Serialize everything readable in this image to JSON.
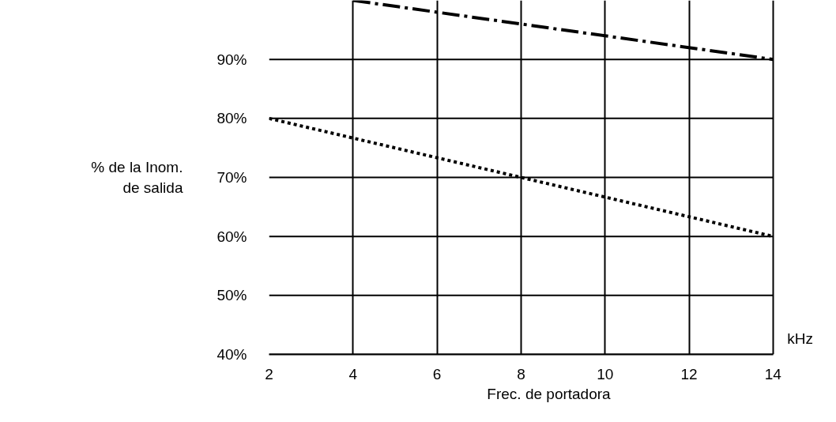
{
  "chart_data": {
    "type": "line",
    "xlabel": "Frec. de portadora",
    "ylabel": "% de la Inom.\nde salida",
    "series": [
      {
        "x": [
          4,
          14
        ],
        "values": [
          100,
          90
        ],
        "color": "#000000",
        "line_style": "dashdot"
      },
      {
        "x": [
          2,
          14
        ],
        "values": [
          80,
          60
        ],
        "color": "#000000",
        "line_style": "dotted"
      }
    ],
    "xlim": [
      2,
      14
    ],
    "xticks": [
      2,
      4,
      6,
      8,
      10,
      12,
      14
    ],
    "ylim": [
      40,
      100
    ],
    "yticks": [
      {
        "value": 40,
        "label": "40%"
      },
      {
        "value": 50,
        "label": "50%"
      },
      {
        "value": 60,
        "label": "60%"
      },
      {
        "value": 70,
        "label": "70%"
      },
      {
        "value": 80,
        "label": "80%"
      },
      {
        "value": 90,
        "label": "90%"
      }
    ],
    "grid": true,
    "marker": "none",
    "annotations": [
      "kHz"
    ]
  }
}
